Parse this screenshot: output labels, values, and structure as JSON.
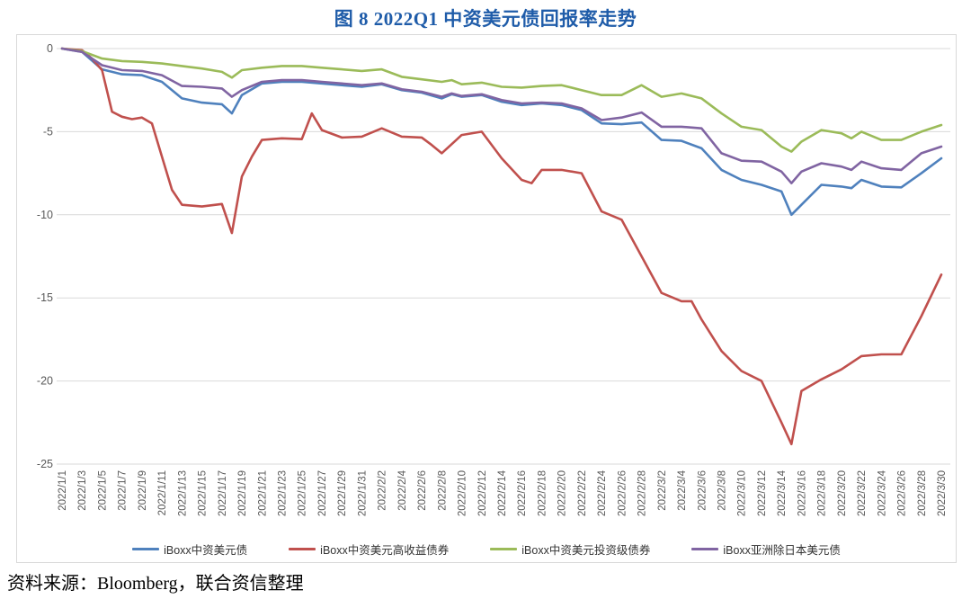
{
  "title": "图 8  2022Q1 中资美元债回报率走势",
  "source_note": "资料来源：Bloomberg，联合资信整理",
  "colors": {
    "title_text": "#1F5CA9",
    "axis_text": "#595959",
    "gridline": "#D9D9D9",
    "panel_border": "#D9D9D9"
  },
  "chart_data": {
    "type": "line",
    "title": "图 8  2022Q1 中资美元债回报率走势",
    "xlabel": "",
    "ylabel": "",
    "x_unit_days_since": "2022/1/1",
    "ylim": [
      -25,
      0
    ],
    "y_ticks": [
      0,
      -5,
      -10,
      -15,
      -20,
      -25
    ],
    "grid": "horizontal",
    "legend_position": "bottom",
    "x_tick_labels": [
      "2022/1/1",
      "2022/1/3",
      "2022/1/5",
      "2022/1/7",
      "2022/1/9",
      "2022/1/11",
      "2022/1/13",
      "2022/1/15",
      "2022/1/17",
      "2022/1/19",
      "2022/1/21",
      "2022/1/23",
      "2022/1/25",
      "2022/1/27",
      "2022/1/29",
      "2022/1/31",
      "2022/2/2",
      "2022/2/4",
      "2022/2/6",
      "2022/2/8",
      "2022/2/10",
      "2022/2/12",
      "2022/2/14",
      "2022/2/16",
      "2022/2/18",
      "2022/2/20",
      "2022/2/22",
      "2022/2/24",
      "2022/2/26",
      "2022/2/28",
      "2022/3/2",
      "2022/3/4",
      "2022/3/6",
      "2022/3/8",
      "2022/3/10",
      "2022/3/12",
      "2022/3/14",
      "2022/3/16",
      "2022/3/18",
      "2022/3/20",
      "2022/3/22",
      "2022/3/24",
      "2022/3/26",
      "2022/3/28",
      "2022/3/30"
    ],
    "series": [
      {
        "name": "iBoxx中资美元债",
        "color": "#4F81BD",
        "points": [
          [
            0,
            0
          ],
          [
            2,
            -0.2
          ],
          [
            4,
            -1.25
          ],
          [
            6,
            -1.55
          ],
          [
            8,
            -1.6
          ],
          [
            10,
            -2.0
          ],
          [
            12,
            -3.0
          ],
          [
            14,
            -3.25
          ],
          [
            16,
            -3.35
          ],
          [
            17,
            -3.9
          ],
          [
            18,
            -2.8
          ],
          [
            20,
            -2.1
          ],
          [
            22,
            -2.0
          ],
          [
            24,
            -2.0
          ],
          [
            26,
            -2.1
          ],
          [
            28,
            -2.2
          ],
          [
            30,
            -2.3
          ],
          [
            32,
            -2.15
          ],
          [
            34,
            -2.5
          ],
          [
            36,
            -2.65
          ],
          [
            38,
            -3.0
          ],
          [
            39,
            -2.75
          ],
          [
            40,
            -2.9
          ],
          [
            42,
            -2.8
          ],
          [
            44,
            -3.2
          ],
          [
            46,
            -3.4
          ],
          [
            48,
            -3.3
          ],
          [
            50,
            -3.4
          ],
          [
            52,
            -3.7
          ],
          [
            54,
            -4.5
          ],
          [
            56,
            -4.55
          ],
          [
            58,
            -4.45
          ],
          [
            60,
            -5.5
          ],
          [
            62,
            -5.55
          ],
          [
            64,
            -6.0
          ],
          [
            66,
            -7.3
          ],
          [
            68,
            -7.9
          ],
          [
            70,
            -8.2
          ],
          [
            72,
            -8.6
          ],
          [
            73,
            -10.0
          ],
          [
            74,
            -9.4
          ],
          [
            76,
            -8.2
          ],
          [
            78,
            -8.3
          ],
          [
            79,
            -8.4
          ],
          [
            80,
            -7.9
          ],
          [
            82,
            -8.3
          ],
          [
            84,
            -8.35
          ],
          [
            86,
            -7.5
          ],
          [
            88,
            -6.6
          ]
        ]
      },
      {
        "name": "iBoxx中资美元高收益债券",
        "color": "#C0504D",
        "points": [
          [
            0,
            0
          ],
          [
            2,
            -0.1
          ],
          [
            3,
            -0.6
          ],
          [
            4,
            -1.3
          ],
          [
            5,
            -3.8
          ],
          [
            6,
            -4.1
          ],
          [
            7,
            -4.25
          ],
          [
            8,
            -4.15
          ],
          [
            9,
            -4.5
          ],
          [
            10,
            -6.5
          ],
          [
            11,
            -8.5
          ],
          [
            12,
            -9.4
          ],
          [
            14,
            -9.5
          ],
          [
            16,
            -9.35
          ],
          [
            17,
            -11.1
          ],
          [
            18,
            -7.7
          ],
          [
            19,
            -6.5
          ],
          [
            20,
            -5.5
          ],
          [
            22,
            -5.4
          ],
          [
            24,
            -5.45
          ],
          [
            25,
            -3.9
          ],
          [
            26,
            -4.9
          ],
          [
            28,
            -5.35
          ],
          [
            30,
            -5.3
          ],
          [
            32,
            -4.8
          ],
          [
            34,
            -5.3
          ],
          [
            36,
            -5.35
          ],
          [
            37,
            -5.8
          ],
          [
            38,
            -6.3
          ],
          [
            40,
            -5.2
          ],
          [
            42,
            -5.0
          ],
          [
            44,
            -6.6
          ],
          [
            46,
            -7.9
          ],
          [
            47,
            -8.1
          ],
          [
            48,
            -7.3
          ],
          [
            50,
            -7.3
          ],
          [
            52,
            -7.5
          ],
          [
            54,
            -9.8
          ],
          [
            56,
            -10.3
          ],
          [
            58,
            -12.5
          ],
          [
            60,
            -14.7
          ],
          [
            62,
            -15.2
          ],
          [
            63,
            -15.2
          ],
          [
            64,
            -16.3
          ],
          [
            66,
            -18.2
          ],
          [
            68,
            -19.4
          ],
          [
            70,
            -20.0
          ],
          [
            72,
            -22.5
          ],
          [
            73,
            -23.8
          ],
          [
            74,
            -20.6
          ],
          [
            76,
            -19.9
          ],
          [
            78,
            -19.3
          ],
          [
            80,
            -18.5
          ],
          [
            82,
            -18.4
          ],
          [
            84,
            -18.4
          ],
          [
            86,
            -16.1
          ],
          [
            88,
            -13.6
          ]
        ]
      },
      {
        "name": "iBoxx中资美元投资级债券",
        "color": "#9BBB59",
        "points": [
          [
            0,
            0
          ],
          [
            2,
            -0.15
          ],
          [
            4,
            -0.6
          ],
          [
            6,
            -0.75
          ],
          [
            8,
            -0.8
          ],
          [
            10,
            -0.9
          ],
          [
            12,
            -1.05
          ],
          [
            14,
            -1.2
          ],
          [
            16,
            -1.4
          ],
          [
            17,
            -1.75
          ],
          [
            18,
            -1.3
          ],
          [
            20,
            -1.15
          ],
          [
            22,
            -1.05
          ],
          [
            24,
            -1.05
          ],
          [
            26,
            -1.15
          ],
          [
            28,
            -1.25
          ],
          [
            30,
            -1.35
          ],
          [
            32,
            -1.25
          ],
          [
            34,
            -1.7
          ],
          [
            36,
            -1.85
          ],
          [
            38,
            -2.0
          ],
          [
            39,
            -1.9
          ],
          [
            40,
            -2.15
          ],
          [
            42,
            -2.05
          ],
          [
            44,
            -2.3
          ],
          [
            46,
            -2.35
          ],
          [
            48,
            -2.25
          ],
          [
            50,
            -2.2
          ],
          [
            52,
            -2.5
          ],
          [
            54,
            -2.8
          ],
          [
            56,
            -2.8
          ],
          [
            58,
            -2.2
          ],
          [
            60,
            -2.9
          ],
          [
            62,
            -2.7
          ],
          [
            64,
            -3.0
          ],
          [
            66,
            -3.9
          ],
          [
            68,
            -4.7
          ],
          [
            70,
            -4.9
          ],
          [
            72,
            -5.9
          ],
          [
            73,
            -6.2
          ],
          [
            74,
            -5.6
          ],
          [
            76,
            -4.9
          ],
          [
            78,
            -5.1
          ],
          [
            79,
            -5.4
          ],
          [
            80,
            -5.0
          ],
          [
            82,
            -5.5
          ],
          [
            84,
            -5.5
          ],
          [
            86,
            -5.0
          ],
          [
            88,
            -4.6
          ]
        ]
      },
      {
        "name": "iBoxx亚洲除日本美元债",
        "color": "#8064A2",
        "points": [
          [
            0,
            0
          ],
          [
            2,
            -0.2
          ],
          [
            4,
            -1.0
          ],
          [
            6,
            -1.3
          ],
          [
            8,
            -1.35
          ],
          [
            10,
            -1.6
          ],
          [
            12,
            -2.25
          ],
          [
            14,
            -2.3
          ],
          [
            16,
            -2.4
          ],
          [
            17,
            -2.9
          ],
          [
            18,
            -2.5
          ],
          [
            20,
            -2.0
          ],
          [
            22,
            -1.9
          ],
          [
            24,
            -1.9
          ],
          [
            26,
            -2.0
          ],
          [
            28,
            -2.1
          ],
          [
            30,
            -2.2
          ],
          [
            32,
            -2.1
          ],
          [
            34,
            -2.45
          ],
          [
            36,
            -2.6
          ],
          [
            38,
            -2.9
          ],
          [
            39,
            -2.7
          ],
          [
            40,
            -2.85
          ],
          [
            42,
            -2.75
          ],
          [
            44,
            -3.1
          ],
          [
            46,
            -3.3
          ],
          [
            48,
            -3.25
          ],
          [
            50,
            -3.3
          ],
          [
            52,
            -3.6
          ],
          [
            54,
            -4.3
          ],
          [
            56,
            -4.15
          ],
          [
            58,
            -3.85
          ],
          [
            60,
            -4.7
          ],
          [
            62,
            -4.7
          ],
          [
            64,
            -4.8
          ],
          [
            66,
            -6.3
          ],
          [
            68,
            -6.75
          ],
          [
            70,
            -6.8
          ],
          [
            72,
            -7.4
          ],
          [
            73,
            -8.1
          ],
          [
            74,
            -7.4
          ],
          [
            76,
            -6.9
          ],
          [
            78,
            -7.1
          ],
          [
            79,
            -7.3
          ],
          [
            80,
            -6.8
          ],
          [
            82,
            -7.2
          ],
          [
            84,
            -7.3
          ],
          [
            86,
            -6.3
          ],
          [
            88,
            -5.9
          ]
        ]
      }
    ]
  }
}
